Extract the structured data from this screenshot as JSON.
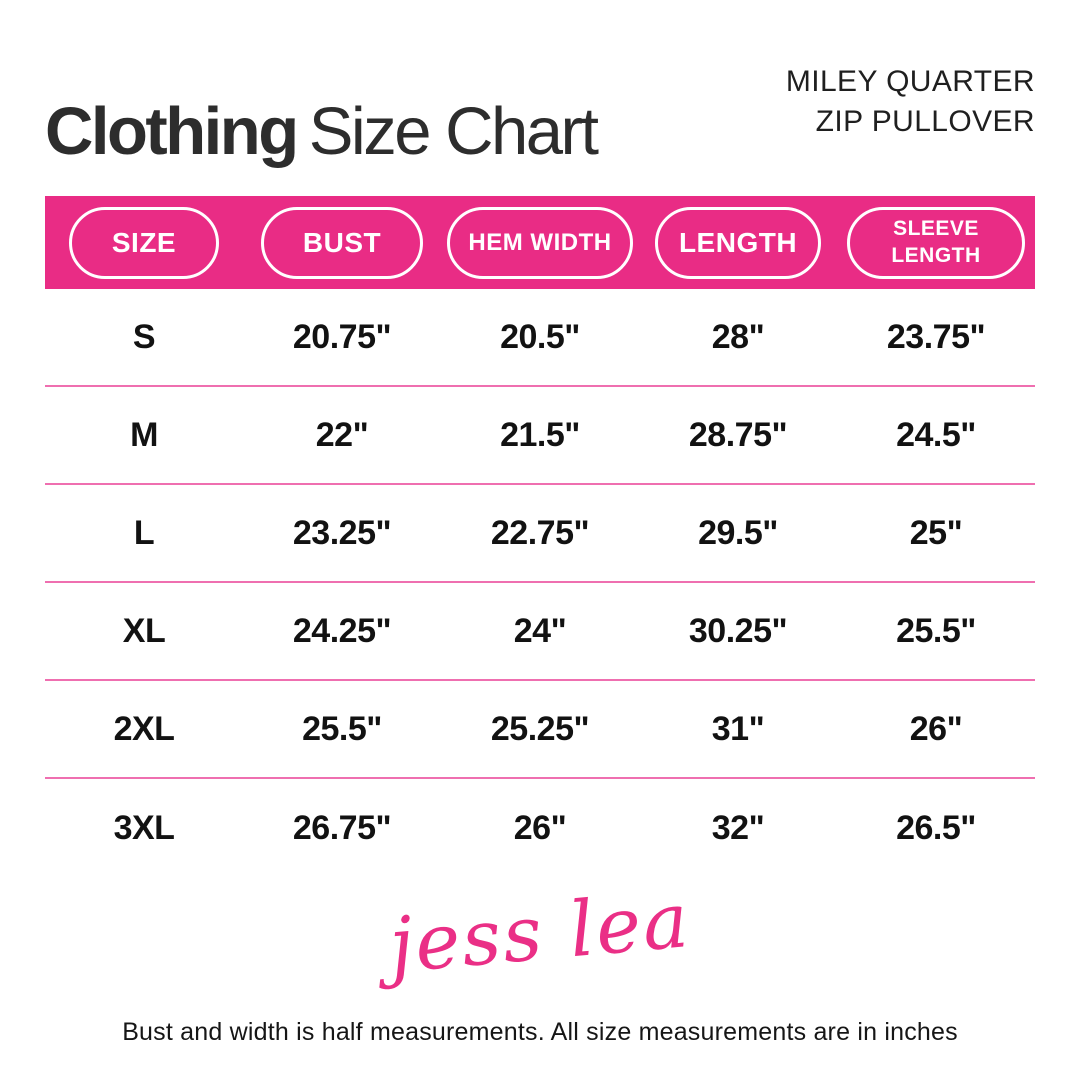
{
  "header": {
    "title_bold": "Clothing",
    "title_regular": "Size Chart",
    "product_line1": "MILEY QUARTER",
    "product_line2": "ZIP PULLOVER"
  },
  "table": {
    "columns": [
      "SIZE",
      "BUST",
      "HEM WIDTH",
      "LENGTH",
      "SLEEVE LENGTH"
    ],
    "rows": [
      {
        "size": "S",
        "bust": "20.75\"",
        "hem_width": "20.5\"",
        "length": "28\"",
        "sleeve_length": "23.75\""
      },
      {
        "size": "M",
        "bust": "22\"",
        "hem_width": "21.5\"",
        "length": "28.75\"",
        "sleeve_length": "24.5\""
      },
      {
        "size": "L",
        "bust": "23.25\"",
        "hem_width": "22.75\"",
        "length": "29.5\"",
        "sleeve_length": "25\""
      },
      {
        "size": "XL",
        "bust": "24.25\"",
        "hem_width": "24\"",
        "length": "30.25\"",
        "sleeve_length": "25.5\""
      },
      {
        "size": "2XL",
        "bust": "25.5\"",
        "hem_width": "25.25\"",
        "length": "31\"",
        "sleeve_length": "26\""
      },
      {
        "size": "3XL",
        "bust": "26.75\"",
        "hem_width": "26\"",
        "length": "32\"",
        "sleeve_length": "26.5\""
      }
    ]
  },
  "footer": {
    "brand_signature": "jess lea",
    "note": "Bust and width is half measurements. All size measurements are in inches"
  },
  "colors": {
    "accent_pink": "#e92c85",
    "divider_pink": "#ef6fb0",
    "text_dark": "#2d2d2d",
    "pill_border": "#ffffff"
  },
  "chart_data": {
    "type": "table",
    "title": "Clothing Size Chart",
    "subtitle": "MILEY QUARTER ZIP PULLOVER",
    "columns": [
      "SIZE",
      "BUST",
      "HEM WIDTH",
      "LENGTH",
      "SLEEVE LENGTH"
    ],
    "rows": [
      [
        "S",
        "20.75\"",
        "20.5\"",
        "28\"",
        "23.75\""
      ],
      [
        "M",
        "22\"",
        "21.5\"",
        "28.75\"",
        "24.5\""
      ],
      [
        "L",
        "23.25\"",
        "22.75\"",
        "29.5\"",
        "25\""
      ],
      [
        "XL",
        "24.25\"",
        "24\"",
        "30.25\"",
        "25.5\""
      ],
      [
        "2XL",
        "25.5\"",
        "25.25\"",
        "31\"",
        "26\""
      ],
      [
        "3XL",
        "26.75\"",
        "26\"",
        "32\"",
        "26.5\""
      ]
    ],
    "note": "Bust and width is half measurements. All size measurements are in inches",
    "units": "inches"
  }
}
